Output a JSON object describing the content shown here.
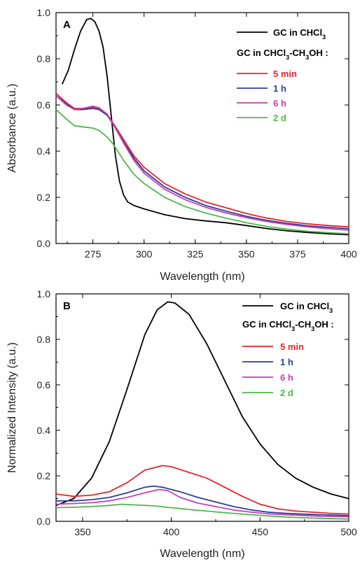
{
  "chart_data": [
    {
      "type": "line",
      "panel_label": "A",
      "xlabel": "Wavelength (nm)",
      "ylabel": "Absorbance (a.u.)",
      "xlim": [
        257,
        400
      ],
      "ylim": [
        0,
        1.0
      ],
      "x_ticks": [
        275,
        300,
        325,
        350,
        375,
        400
      ],
      "y_ticks": [
        0.0,
        0.2,
        0.4,
        0.6,
        0.8,
        1.0
      ],
      "legend_position": "top-right",
      "legend_heading": "GC in CHCl3-CH3OH :",
      "series": [
        {
          "name": "GC in CHCl3",
          "color": "#000000",
          "points": [
            [
              260,
              0.69
            ],
            [
              263,
              0.75
            ],
            [
              266,
              0.84
            ],
            [
              269,
              0.92
            ],
            [
              272,
              0.97
            ],
            [
              274,
              0.975
            ],
            [
              276,
              0.96
            ],
            [
              278,
              0.92
            ],
            [
              280,
              0.85
            ],
            [
              282,
              0.72
            ],
            [
              284,
              0.55
            ],
            [
              286,
              0.38
            ],
            [
              288,
              0.27
            ],
            [
              290,
              0.21
            ],
            [
              292,
              0.18
            ],
            [
              295,
              0.165
            ],
            [
              300,
              0.15
            ],
            [
              310,
              0.125
            ],
            [
              320,
              0.108
            ],
            [
              330,
              0.098
            ],
            [
              340,
              0.09
            ],
            [
              350,
              0.078
            ],
            [
              360,
              0.065
            ],
            [
              370,
              0.055
            ],
            [
              380,
              0.048
            ],
            [
              390,
              0.042
            ],
            [
              400,
              0.038
            ]
          ]
        },
        {
          "name": "5 min",
          "color": "#e8232a",
          "points": [
            [
              257,
              0.65
            ],
            [
              262,
              0.61
            ],
            [
              266,
              0.585
            ],
            [
              270,
              0.585
            ],
            [
              275,
              0.59
            ],
            [
              278,
              0.585
            ],
            [
              282,
              0.56
            ],
            [
              285,
              0.52
            ],
            [
              290,
              0.45
            ],
            [
              295,
              0.38
            ],
            [
              300,
              0.33
            ],
            [
              310,
              0.26
            ],
            [
              320,
              0.215
            ],
            [
              330,
              0.18
            ],
            [
              340,
              0.155
            ],
            [
              350,
              0.13
            ],
            [
              360,
              0.11
            ],
            [
              370,
              0.095
            ],
            [
              380,
              0.085
            ],
            [
              390,
              0.078
            ],
            [
              400,
              0.072
            ]
          ]
        },
        {
          "name": "1 h",
          "color": "#2b3d9e",
          "points": [
            [
              257,
              0.64
            ],
            [
              262,
              0.605
            ],
            [
              266,
              0.58
            ],
            [
              270,
              0.58
            ],
            [
              275,
              0.585
            ],
            [
              278,
              0.58
            ],
            [
              282,
              0.555
            ],
            [
              285,
              0.515
            ],
            [
              290,
              0.44
            ],
            [
              295,
              0.37
            ],
            [
              300,
              0.315
            ],
            [
              310,
              0.245
            ],
            [
              320,
              0.2
            ],
            [
              330,
              0.165
            ],
            [
              340,
              0.14
            ],
            [
              350,
              0.118
            ],
            [
              360,
              0.1
            ],
            [
              370,
              0.087
            ],
            [
              380,
              0.077
            ],
            [
              390,
              0.07
            ],
            [
              400,
              0.064
            ]
          ]
        },
        {
          "name": "6 h",
          "color": "#c43fb3",
          "points": [
            [
              257,
              0.64
            ],
            [
              262,
              0.6
            ],
            [
              266,
              0.58
            ],
            [
              270,
              0.585
            ],
            [
              275,
              0.595
            ],
            [
              278,
              0.588
            ],
            [
              282,
              0.56
            ],
            [
              285,
              0.515
            ],
            [
              290,
              0.435
            ],
            [
              295,
              0.36
            ],
            [
              300,
              0.305
            ],
            [
              310,
              0.235
            ],
            [
              320,
              0.19
            ],
            [
              330,
              0.157
            ],
            [
              340,
              0.132
            ],
            [
              350,
              0.112
            ],
            [
              360,
              0.095
            ],
            [
              370,
              0.082
            ],
            [
              380,
              0.072
            ],
            [
              390,
              0.064
            ],
            [
              400,
              0.058
            ]
          ]
        },
        {
          "name": "2 d",
          "color": "#4db84a",
          "points": [
            [
              257,
              0.58
            ],
            [
              262,
              0.54
            ],
            [
              266,
              0.51
            ],
            [
              270,
              0.505
            ],
            [
              275,
              0.5
            ],
            [
              278,
              0.49
            ],
            [
              282,
              0.46
            ],
            [
              285,
              0.43
            ],
            [
              290,
              0.36
            ],
            [
              295,
              0.3
            ],
            [
              300,
              0.26
            ],
            [
              310,
              0.2
            ],
            [
              320,
              0.16
            ],
            [
              330,
              0.132
            ],
            [
              340,
              0.11
            ],
            [
              350,
              0.09
            ],
            [
              360,
              0.074
            ],
            [
              370,
              0.062
            ],
            [
              380,
              0.053
            ],
            [
              390,
              0.047
            ],
            [
              400,
              0.042
            ]
          ]
        }
      ]
    },
    {
      "type": "line",
      "panel_label": "B",
      "xlabel": "Wavelength (nm)",
      "ylabel": "Normalized Intensity (a.u.)",
      "xlim": [
        335,
        500
      ],
      "ylim": [
        0,
        1.0
      ],
      "x_ticks": [
        350,
        400,
        450,
        500
      ],
      "y_ticks": [
        0.0,
        0.2,
        0.4,
        0.6,
        0.8,
        1.0
      ],
      "legend_position": "top-right",
      "legend_heading": "GC in CHCl3-CH3OH :",
      "series": [
        {
          "name": "GC in CHCl3",
          "color": "#000000",
          "points": [
            [
              335,
              0.07
            ],
            [
              345,
              0.1
            ],
            [
              355,
              0.19
            ],
            [
              365,
              0.35
            ],
            [
              375,
              0.58
            ],
            [
              385,
              0.82
            ],
            [
              392,
              0.93
            ],
            [
              398,
              0.965
            ],
            [
              402,
              0.96
            ],
            [
              410,
              0.91
            ],
            [
              420,
              0.78
            ],
            [
              430,
              0.62
            ],
            [
              440,
              0.46
            ],
            [
              450,
              0.34
            ],
            [
              460,
              0.25
            ],
            [
              470,
              0.19
            ],
            [
              480,
              0.15
            ],
            [
              490,
              0.12
            ],
            [
              500,
              0.1
            ]
          ]
        },
        {
          "name": "5 min",
          "color": "#e8232a",
          "points": [
            [
              335,
              0.12
            ],
            [
              345,
              0.11
            ],
            [
              355,
              0.115
            ],
            [
              365,
              0.13
            ],
            [
              375,
              0.17
            ],
            [
              385,
              0.225
            ],
            [
              395,
              0.245
            ],
            [
              400,
              0.24
            ],
            [
              410,
              0.215
            ],
            [
              420,
              0.19
            ],
            [
              430,
              0.15
            ],
            [
              440,
              0.11
            ],
            [
              450,
              0.075
            ],
            [
              460,
              0.055
            ],
            [
              470,
              0.045
            ],
            [
              480,
              0.04
            ],
            [
              490,
              0.035
            ],
            [
              500,
              0.032
            ]
          ]
        },
        {
          "name": "1 h",
          "color": "#2b3d9e",
          "points": [
            [
              335,
              0.09
            ],
            [
              345,
              0.09
            ],
            [
              355,
              0.095
            ],
            [
              365,
              0.105
            ],
            [
              375,
              0.125
            ],
            [
              385,
              0.15
            ],
            [
              390,
              0.155
            ],
            [
              395,
              0.15
            ],
            [
              405,
              0.13
            ],
            [
              415,
              0.105
            ],
            [
              425,
              0.085
            ],
            [
              435,
              0.065
            ],
            [
              445,
              0.05
            ],
            [
              455,
              0.04
            ],
            [
              465,
              0.035
            ],
            [
              480,
              0.03
            ],
            [
              500,
              0.025
            ]
          ]
        },
        {
          "name": "6 h",
          "color": "#c43fb3",
          "points": [
            [
              335,
              0.075
            ],
            [
              345,
              0.078
            ],
            [
              355,
              0.082
            ],
            [
              365,
              0.09
            ],
            [
              375,
              0.105
            ],
            [
              385,
              0.125
            ],
            [
              393,
              0.14
            ],
            [
              398,
              0.135
            ],
            [
              405,
              0.105
            ],
            [
              415,
              0.08
            ],
            [
              425,
              0.065
            ],
            [
              435,
              0.05
            ],
            [
              445,
              0.04
            ],
            [
              455,
              0.033
            ],
            [
              470,
              0.027
            ],
            [
              485,
              0.022
            ],
            [
              500,
              0.02
            ]
          ]
        },
        {
          "name": "2 d",
          "color": "#4db84a",
          "points": [
            [
              335,
              0.06
            ],
            [
              345,
              0.062
            ],
            [
              355,
              0.065
            ],
            [
              365,
              0.07
            ],
            [
              372,
              0.075
            ],
            [
              380,
              0.072
            ],
            [
              390,
              0.068
            ],
            [
              400,
              0.06
            ],
            [
              410,
              0.052
            ],
            [
              420,
              0.045
            ],
            [
              430,
              0.038
            ],
            [
              440,
              0.032
            ],
            [
              450,
              0.026
            ],
            [
              460,
              0.021
            ],
            [
              470,
              0.017
            ],
            [
              485,
              0.013
            ],
            [
              500,
              0.01
            ]
          ]
        }
      ]
    }
  ]
}
